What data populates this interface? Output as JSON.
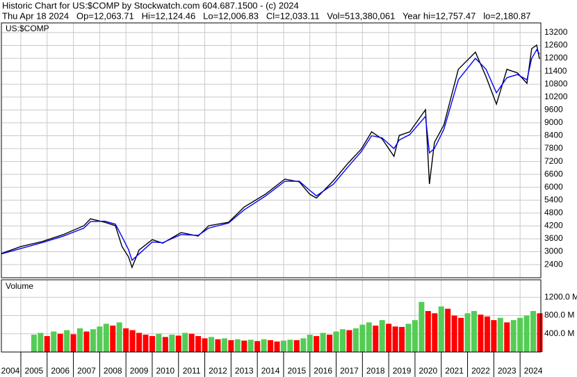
{
  "header": {
    "title": "Historic Chart for US:$COMP by Stockwatch.com 604.687.1500 - (c) 2024",
    "quote": "Thu Apr 18 2024   Op=12,063.71   Hi=12,124.46   Lo=12,006.83   Cl=12,033.11   Vol=513,380,061   Year hi=12,757.47   lo=2,180.87"
  },
  "chart_data": [
    {
      "type": "line",
      "title": "US:$COMP",
      "x": [
        2004.26,
        2005.0,
        2005.8,
        2006.6,
        2007.4,
        2007.65,
        2008.2,
        2008.6,
        2008.85,
        2009.1,
        2009.23,
        2009.5,
        2010.0,
        2010.4,
        2011.1,
        2011.75,
        2012.15,
        2012.9,
        2013.5,
        2014.3,
        2015.05,
        2015.6,
        2016.0,
        2016.25,
        2016.9,
        2017.45,
        2017.95,
        2018.35,
        2018.75,
        2019.2,
        2019.4,
        2019.8,
        2020.4,
        2020.55,
        2020.74,
        2021.1,
        2021.65,
        2022.3,
        2022.7,
        2023.1,
        2023.5,
        2023.9,
        2024.26,
        2024.44,
        2024.63,
        2024.74
      ],
      "series": [
        {
          "color": "#000000",
          "values": [
            2917,
            3240,
            3470,
            3790,
            4210,
            4530,
            4370,
            4210,
            3240,
            2760,
            2270,
            3080,
            3560,
            3400,
            3890,
            3730,
            4210,
            4370,
            5080,
            5670,
            6380,
            6250,
            5670,
            5500,
            6310,
            7120,
            7770,
            8580,
            8250,
            7440,
            8410,
            8580,
            9610,
            6150,
            8090,
            8900,
            11490,
            12290,
            11160,
            9870,
            11490,
            11320,
            10840,
            12450,
            12620,
            11970
          ]
        },
        {
          "color": "#0000ff",
          "values": [
            2900,
            3150,
            3420,
            3720,
            4100,
            4400,
            4420,
            4280,
            3700,
            3100,
            2600,
            2900,
            3450,
            3420,
            3800,
            3760,
            4100,
            4330,
            4950,
            5580,
            6280,
            6280,
            5850,
            5600,
            6150,
            6950,
            7650,
            8400,
            8300,
            7800,
            8200,
            8450,
            9300,
            7600,
            7800,
            8700,
            11000,
            12000,
            11500,
            10400,
            11100,
            11250,
            11000,
            12000,
            12400,
            12200
          ]
        }
      ],
      "xlim": [
        2004.26,
        2024.79
      ],
      "ylim": [
        1790,
        13650
      ],
      "yticks": [
        2400,
        3000,
        3600,
        4200,
        4800,
        5400,
        6000,
        6600,
        7200,
        7800,
        8400,
        9000,
        9600,
        10200,
        10800,
        11400,
        12000,
        12600,
        13200
      ],
      "grid": true
    },
    {
      "type": "bar",
      "title": "Volume",
      "x": [
        2005.5,
        2005.75,
        2006.0,
        2006.25,
        2006.5,
        2006.75,
        2007.0,
        2007.25,
        2007.5,
        2007.75,
        2008.0,
        2008.25,
        2008.5,
        2008.75,
        2009.0,
        2009.25,
        2009.5,
        2009.75,
        2010.0,
        2010.25,
        2010.5,
        2010.75,
        2011.0,
        2011.25,
        2011.5,
        2011.75,
        2012.0,
        2012.25,
        2012.5,
        2012.75,
        2013.0,
        2013.25,
        2013.5,
        2013.75,
        2014.0,
        2014.25,
        2014.5,
        2014.75,
        2015.0,
        2015.25,
        2015.5,
        2015.75,
        2016.0,
        2016.25,
        2016.5,
        2016.75,
        2017.0,
        2017.25,
        2017.5,
        2017.75,
        2018.0,
        2018.25,
        2018.5,
        2018.75,
        2019.0,
        2019.25,
        2019.5,
        2019.75,
        2020.0,
        2020.25,
        2020.5,
        2020.75,
        2021.0,
        2021.25,
        2021.5,
        2021.75,
        2022.0,
        2022.25,
        2022.5,
        2022.75,
        2023.0,
        2023.25,
        2023.5,
        2023.75,
        2024.0,
        2024.25,
        2024.5,
        2024.75
      ],
      "values": [
        380,
        420,
        350,
        450,
        400,
        480,
        390,
        520,
        450,
        500,
        560,
        620,
        580,
        650,
        520,
        480,
        420,
        380,
        350,
        400,
        330,
        380,
        360,
        420,
        400,
        350,
        300,
        330,
        280,
        300,
        260,
        280,
        250,
        270,
        240,
        280,
        260,
        230,
        250,
        270,
        260,
        300,
        380,
        350,
        420,
        380,
        450,
        500,
        480,
        520,
        600,
        650,
        580,
        700,
        620,
        560,
        550,
        620,
        700,
        1100,
        900,
        850,
        1000,
        950,
        800,
        750,
        850,
        900,
        820,
        780,
        700,
        750,
        650,
        700,
        750,
        800,
        900,
        850
      ],
      "up_color": "#55cc55",
      "down_color": "#ff0000",
      "xlim": [
        2004.26,
        2024.79
      ],
      "ylim": [
        0,
        1585
      ],
      "yticks": [
        {
          "value": 400,
          "label": "400.0 M"
        },
        {
          "value": 800,
          "label": "800.0 M"
        },
        {
          "value": 1200,
          "label": "1200.0 M"
        }
      ],
      "xticks": [
        2004,
        2005,
        2006,
        2007,
        2008,
        2009,
        2010,
        2011,
        2012,
        2013,
        2014,
        2015,
        2016,
        2017,
        2018,
        2019,
        2020,
        2021,
        2022,
        2023,
        2024
      ],
      "grid": true
    }
  ]
}
